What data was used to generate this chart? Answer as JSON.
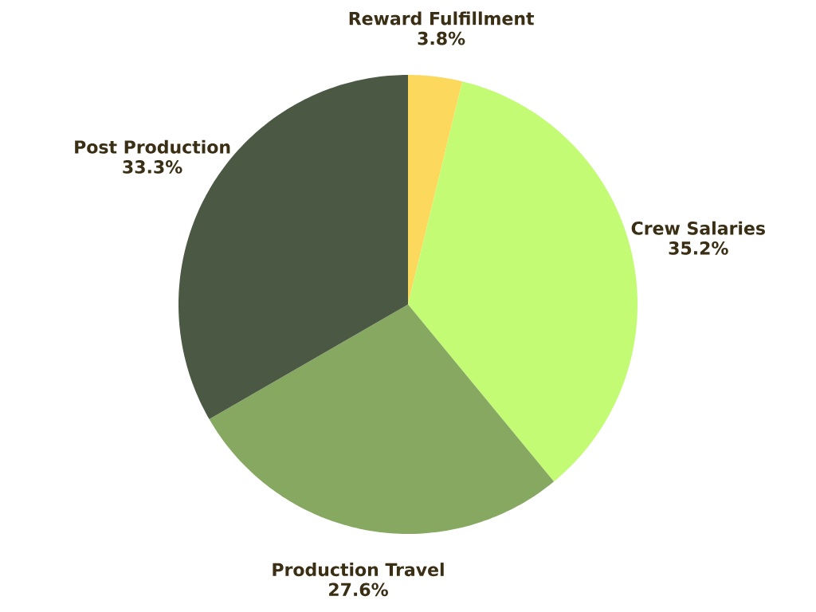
{
  "chart_data": {
    "type": "pie",
    "categories": [
      "Reward Fulfillment",
      "Crew Salaries",
      "Production Travel",
      "Post Production"
    ],
    "values": [
      3.8,
      35.2,
      27.6,
      33.3
    ],
    "colors": [
      "#fcd95c",
      "#c3fc74",
      "#86a860",
      "#4b5844"
    ],
    "value_labels": [
      "3.8%",
      "35.2%",
      "27.6%",
      "33.3%"
    ]
  }
}
